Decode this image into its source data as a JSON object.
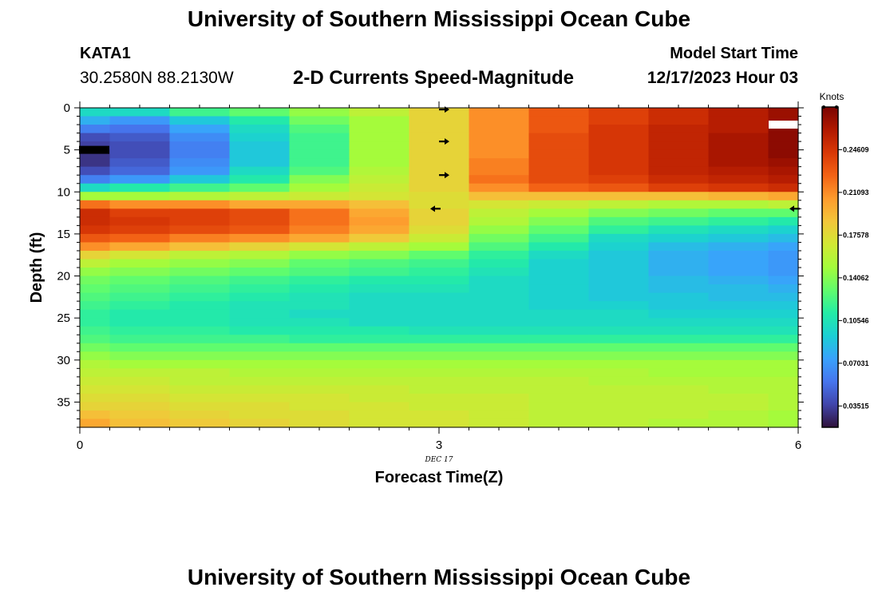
{
  "header": {
    "title": "University of Southern Mississippi Ocean Cube",
    "station_id": "KATA1",
    "coords": "30.2580N  88.2130W",
    "subtitle": "2-D Currents Speed-Magnitude",
    "model_start_label": "Model Start Time",
    "model_start_value": "12/17/2023 Hour 03"
  },
  "footer": {
    "title": "University of Southern Mississippi Ocean Cube"
  },
  "chart_data": {
    "type": "heatmap",
    "title": "2-D Currents Speed-Magnitude",
    "xlabel": "Forecast Time(Z)",
    "ylabel": "Depth (ft)",
    "date_label": "DEC 17",
    "xlim": [
      0,
      6
    ],
    "ylim": [
      0,
      38
    ],
    "x_ticks": [
      0,
      3,
      6
    ],
    "x_tick_labels": [
      "0",
      "3",
      "6"
    ],
    "y_ticks": [
      0,
      5,
      10,
      15,
      20,
      25,
      30,
      35
    ],
    "y_tick_labels": [
      "0",
      "5",
      "10",
      "15",
      "20",
      "25",
      "30",
      "35"
    ],
    "colorbar": {
      "label": "Knots",
      "min": 0.0176,
      "max": 0.2812,
      "ticks": [
        0.03515,
        0.07031,
        0.10546,
        0.14062,
        0.17578,
        0.21093,
        0.24609
      ],
      "tick_labels": [
        "0.03515",
        "0.07031",
        "0.10546",
        "0.14062",
        "0.17578",
        "0.21093",
        "0.24609"
      ],
      "colormap": [
        "#30123b",
        "#4145ab",
        "#4675ed",
        "#39a2fc",
        "#1bcfd4",
        "#24eca6",
        "#61fc6c",
        "#a4fc3b",
        "#d1e834",
        "#f3c63a",
        "#fe9b2d",
        "#f36315",
        "#d93806",
        "#b11901",
        "#7a0402"
      ]
    },
    "time_columns": [
      0,
      0.5,
      1,
      1.5,
      2,
      2.5,
      3,
      3.5,
      4,
      4.5,
      5,
      5.5,
      6
    ],
    "depths_ft": [
      0,
      1,
      2,
      3,
      4,
      5,
      6,
      7,
      8,
      9,
      10,
      11,
      12,
      13,
      14,
      15,
      16,
      17,
      18,
      19,
      20,
      21,
      22,
      23,
      24,
      25,
      26,
      27,
      28,
      29,
      30,
      31,
      32,
      33,
      34,
      35,
      36,
      37
    ],
    "speed_knots": [
      [
        0.1,
        0.1,
        0.12,
        0.13,
        0.145,
        0.16,
        0.18,
        0.21,
        0.23,
        0.24,
        0.25,
        0.26,
        0.27
      ],
      [
        0.08,
        0.07,
        0.09,
        0.11,
        0.135,
        0.15,
        0.18,
        0.21,
        0.23,
        0.24,
        0.25,
        0.26,
        0.27
      ],
      [
        0.06,
        0.055,
        0.075,
        0.1,
        0.125,
        0.15,
        0.18,
        0.21,
        0.23,
        0.245,
        0.255,
        0.26,
        0.275
      ],
      [
        0.04,
        0.045,
        0.065,
        0.095,
        0.12,
        0.15,
        0.18,
        0.21,
        0.235,
        0.245,
        0.255,
        0.265,
        0.275
      ],
      [
        0.035,
        0.04,
        0.06,
        0.09,
        0.12,
        0.15,
        0.18,
        0.21,
        0.235,
        0.245,
        0.255,
        0.265,
        0.275
      ],
      [
        0.03,
        0.04,
        0.06,
        0.09,
        0.12,
        0.15,
        0.18,
        0.21,
        0.235,
        0.245,
        0.255,
        0.265,
        0.275
      ],
      [
        0.03,
        0.045,
        0.065,
        0.09,
        0.12,
        0.15,
        0.18,
        0.215,
        0.235,
        0.245,
        0.255,
        0.265,
        0.27
      ],
      [
        0.04,
        0.05,
        0.07,
        0.1,
        0.125,
        0.155,
        0.18,
        0.215,
        0.235,
        0.245,
        0.255,
        0.26,
        0.265
      ],
      [
        0.06,
        0.07,
        0.09,
        0.11,
        0.14,
        0.16,
        0.18,
        0.22,
        0.235,
        0.24,
        0.25,
        0.255,
        0.26
      ],
      [
        0.1,
        0.11,
        0.12,
        0.13,
        0.15,
        0.165,
        0.18,
        0.21,
        0.225,
        0.23,
        0.24,
        0.245,
        0.25
      ],
      [
        0.15,
        0.15,
        0.155,
        0.16,
        0.165,
        0.17,
        0.175,
        0.19,
        0.19,
        0.19,
        0.19,
        0.195,
        0.2
      ],
      [
        0.22,
        0.21,
        0.21,
        0.2,
        0.2,
        0.19,
        0.175,
        0.17,
        0.165,
        0.16,
        0.155,
        0.155,
        0.16
      ],
      [
        0.25,
        0.24,
        0.24,
        0.235,
        0.22,
        0.2,
        0.18,
        0.16,
        0.15,
        0.14,
        0.135,
        0.13,
        0.13
      ],
      [
        0.25,
        0.245,
        0.24,
        0.235,
        0.22,
        0.205,
        0.18,
        0.155,
        0.14,
        0.125,
        0.12,
        0.115,
        0.11
      ],
      [
        0.245,
        0.24,
        0.235,
        0.23,
        0.215,
        0.2,
        0.175,
        0.145,
        0.13,
        0.115,
        0.105,
        0.1,
        0.095
      ],
      [
        0.23,
        0.225,
        0.215,
        0.21,
        0.2,
        0.185,
        0.165,
        0.135,
        0.12,
        0.1,
        0.095,
        0.09,
        0.085
      ],
      [
        0.21,
        0.2,
        0.19,
        0.18,
        0.17,
        0.16,
        0.15,
        0.125,
        0.11,
        0.095,
        0.085,
        0.08,
        0.075
      ],
      [
        0.18,
        0.17,
        0.16,
        0.155,
        0.145,
        0.14,
        0.13,
        0.115,
        0.1,
        0.09,
        0.08,
        0.075,
        0.07
      ],
      [
        0.16,
        0.15,
        0.145,
        0.14,
        0.13,
        0.125,
        0.12,
        0.11,
        0.095,
        0.09,
        0.08,
        0.075,
        0.07
      ],
      [
        0.145,
        0.14,
        0.135,
        0.13,
        0.125,
        0.12,
        0.115,
        0.105,
        0.095,
        0.09,
        0.08,
        0.075,
        0.07
      ],
      [
        0.135,
        0.13,
        0.125,
        0.12,
        0.115,
        0.11,
        0.11,
        0.1,
        0.095,
        0.09,
        0.085,
        0.08,
        0.075
      ],
      [
        0.13,
        0.125,
        0.12,
        0.115,
        0.11,
        0.105,
        0.105,
        0.1,
        0.095,
        0.09,
        0.085,
        0.085,
        0.08
      ],
      [
        0.125,
        0.12,
        0.115,
        0.11,
        0.105,
        0.1,
        0.1,
        0.1,
        0.095,
        0.09,
        0.09,
        0.085,
        0.085
      ],
      [
        0.12,
        0.115,
        0.11,
        0.105,
        0.105,
        0.1,
        0.1,
        0.1,
        0.095,
        0.095,
        0.09,
        0.09,
        0.09
      ],
      [
        0.115,
        0.11,
        0.11,
        0.105,
        0.1,
        0.1,
        0.1,
        0.1,
        0.1,
        0.1,
        0.095,
        0.095,
        0.095
      ],
      [
        0.115,
        0.11,
        0.11,
        0.105,
        0.105,
        0.1,
        0.1,
        0.1,
        0.1,
        0.1,
        0.1,
        0.1,
        0.1
      ],
      [
        0.12,
        0.115,
        0.115,
        0.11,
        0.11,
        0.11,
        0.105,
        0.105,
        0.105,
        0.105,
        0.105,
        0.105,
        0.105
      ],
      [
        0.125,
        0.12,
        0.12,
        0.12,
        0.115,
        0.115,
        0.115,
        0.115,
        0.115,
        0.115,
        0.115,
        0.115,
        0.115
      ],
      [
        0.135,
        0.13,
        0.13,
        0.13,
        0.13,
        0.13,
        0.13,
        0.13,
        0.13,
        0.13,
        0.13,
        0.13,
        0.13
      ],
      [
        0.145,
        0.14,
        0.14,
        0.14,
        0.14,
        0.14,
        0.14,
        0.14,
        0.14,
        0.14,
        0.14,
        0.14,
        0.14
      ],
      [
        0.155,
        0.15,
        0.15,
        0.15,
        0.15,
        0.15,
        0.15,
        0.15,
        0.15,
        0.15,
        0.15,
        0.15,
        0.15
      ],
      [
        0.16,
        0.16,
        0.16,
        0.155,
        0.155,
        0.155,
        0.155,
        0.155,
        0.155,
        0.155,
        0.15,
        0.15,
        0.15
      ],
      [
        0.165,
        0.165,
        0.16,
        0.16,
        0.16,
        0.16,
        0.16,
        0.16,
        0.16,
        0.155,
        0.155,
        0.155,
        0.155
      ],
      [
        0.17,
        0.17,
        0.165,
        0.165,
        0.165,
        0.165,
        0.16,
        0.16,
        0.16,
        0.16,
        0.16,
        0.155,
        0.155
      ],
      [
        0.175,
        0.175,
        0.17,
        0.17,
        0.17,
        0.165,
        0.165,
        0.165,
        0.16,
        0.16,
        0.16,
        0.16,
        0.155
      ],
      [
        0.18,
        0.18,
        0.175,
        0.175,
        0.17,
        0.17,
        0.165,
        0.165,
        0.16,
        0.16,
        0.16,
        0.16,
        0.155
      ],
      [
        0.19,
        0.185,
        0.18,
        0.175,
        0.175,
        0.17,
        0.17,
        0.165,
        0.16,
        0.16,
        0.16,
        0.155,
        0.15
      ],
      [
        0.2,
        0.19,
        0.185,
        0.18,
        0.175,
        0.17,
        0.17,
        0.165,
        0.16,
        0.16,
        0.155,
        0.155,
        0.15
      ]
    ],
    "direction_arrows": [
      {
        "time": 3,
        "depth": 0.2,
        "dir": "right"
      },
      {
        "time": 3,
        "depth": 4,
        "dir": "right"
      },
      {
        "time": 3,
        "depth": 8,
        "dir": "right"
      },
      {
        "time": 3,
        "depth": 12,
        "dir": "left"
      },
      {
        "time": 6,
        "depth": 12,
        "dir": "left"
      }
    ],
    "missing_marks": [
      {
        "time": 0.12,
        "depth": 5,
        "color": "#000000"
      },
      {
        "time": 5.88,
        "depth": 2,
        "color": "#ffffff"
      }
    ]
  }
}
